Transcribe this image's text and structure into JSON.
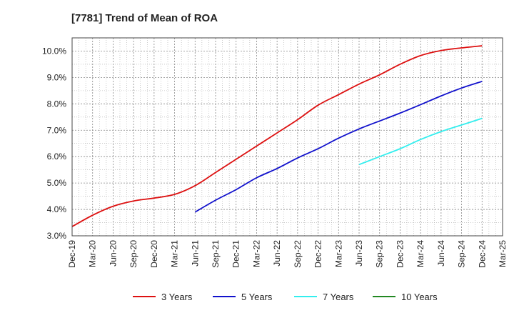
{
  "chart_data": {
    "type": "line",
    "title": "[7781]  Trend of Mean of ROA",
    "xlabel": "",
    "ylabel": "",
    "ylim": [
      3.0,
      10.5
    ],
    "y_ticks": [
      3.0,
      4.0,
      5.0,
      6.0,
      7.0,
      8.0,
      9.0,
      10.0
    ],
    "y_tick_labels": [
      "3.0%",
      "4.0%",
      "5.0%",
      "6.0%",
      "7.0%",
      "8.0%",
      "9.0%",
      "10.0%"
    ],
    "x_tick_labels": [
      "Dec-19",
      "Mar-20",
      "Jun-20",
      "Sep-20",
      "Dec-20",
      "Mar-21",
      "Jun-21",
      "Sep-21",
      "Dec-21",
      "Mar-22",
      "Jun-22",
      "Sep-22",
      "Dec-22",
      "Mar-23",
      "Jun-23",
      "Sep-23",
      "Dec-23",
      "Mar-24",
      "Jun-24",
      "Sep-24",
      "Dec-24",
      "Mar-25"
    ],
    "grid": true,
    "legend_position": "bottom",
    "series": [
      {
        "name": "3 Years",
        "color": "#dd1111",
        "values": [
          3.35,
          3.78,
          4.12,
          4.32,
          4.43,
          4.57,
          4.9,
          5.4,
          5.9,
          6.4,
          6.9,
          7.4,
          7.95,
          8.35,
          8.75,
          9.1,
          9.5,
          9.83,
          10.02,
          10.12,
          10.2,
          null
        ]
      },
      {
        "name": "5 Years",
        "color": "#1111cc",
        "values": [
          null,
          null,
          null,
          null,
          null,
          null,
          3.9,
          4.35,
          4.75,
          5.2,
          5.55,
          5.95,
          6.3,
          6.7,
          7.05,
          7.35,
          7.65,
          7.97,
          8.3,
          8.6,
          8.85,
          null
        ]
      },
      {
        "name": "7 Years",
        "color": "#33eeee",
        "values": [
          null,
          null,
          null,
          null,
          null,
          null,
          null,
          null,
          null,
          null,
          null,
          null,
          null,
          null,
          5.7,
          6.0,
          6.3,
          6.65,
          6.95,
          7.2,
          7.45,
          null
        ]
      },
      {
        "name": "10 Years",
        "color": "#228822",
        "values": [
          null,
          null,
          null,
          null,
          null,
          null,
          null,
          null,
          null,
          null,
          null,
          null,
          null,
          null,
          null,
          null,
          null,
          null,
          null,
          null,
          null,
          null
        ]
      }
    ]
  }
}
